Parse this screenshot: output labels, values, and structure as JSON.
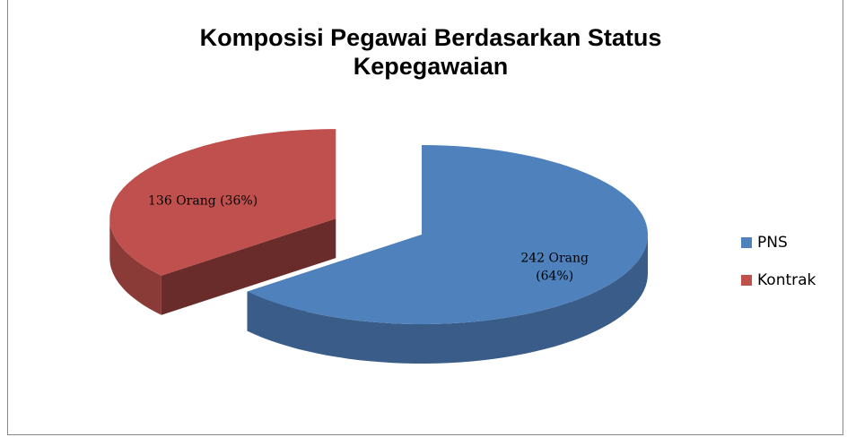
{
  "chart_data": {
    "type": "pie3d",
    "title": "Komposisi Pegawai Berdasarkan  Status Kepegawaian",
    "categories": [
      "PNS",
      "Kontrak"
    ],
    "values": [
      242,
      136
    ],
    "value_labels": [
      "242 Orang (64%)",
      "136 Orang (36%)"
    ],
    "colors": [
      "#4f81bd",
      "#c0504d"
    ],
    "legend": "right"
  }
}
